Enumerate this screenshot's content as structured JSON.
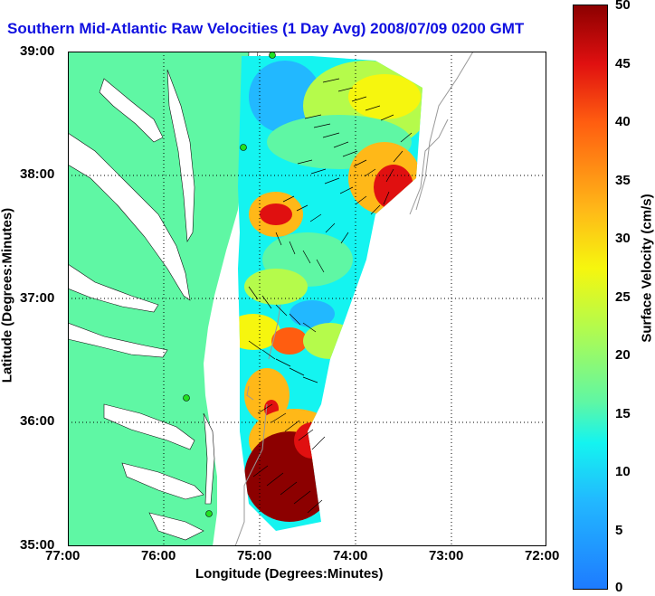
{
  "title": "Southern Mid-Atlantic Raw Velocities (1 Day Avg) 2008/07/09 0200 GMT",
  "xaxis": {
    "label": "Longitude (Degrees:Minutes)",
    "ticks": [
      "77:00",
      "76:00",
      "75:00",
      "74:00",
      "73:00",
      "72:00"
    ]
  },
  "yaxis": {
    "label": "Latitude (Degrees:Minutes)",
    "ticks": [
      "39:00",
      "38:00",
      "37:00",
      "36:00",
      "35:00"
    ]
  },
  "colorbar": {
    "label": "Surface Velocity (cm/s)",
    "ticks": [
      "50",
      "45",
      "40",
      "35",
      "30",
      "25",
      "20",
      "15",
      "10",
      "5",
      "0"
    ],
    "range": [
      0,
      50
    ]
  },
  "colors": {
    "land": "#5ff7a4",
    "title": "#1010e0",
    "station": "#22e022"
  }
}
